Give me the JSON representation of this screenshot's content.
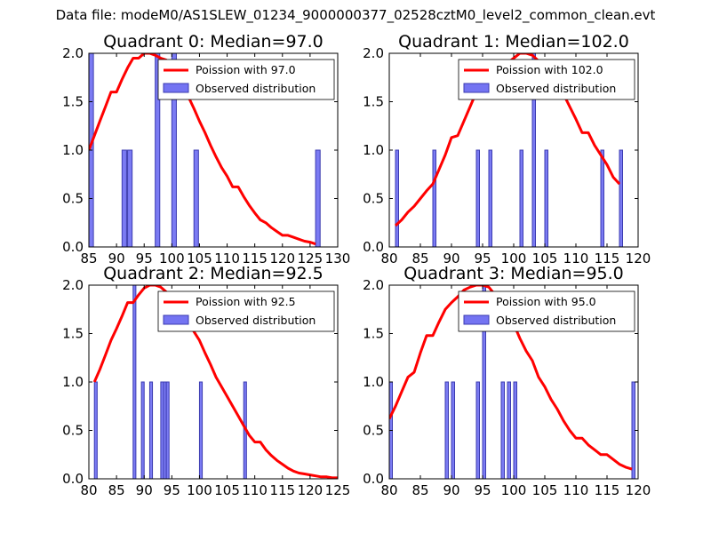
{
  "figure": {
    "suptitle": "Data file: modeM0/AS1SLEW_01234_9000000377_02528cztM0_level2_common_clean.evt",
    "colors": {
      "bar": "#7474f2",
      "bar_edge": "#3b3bb0",
      "curve": "#ff0000",
      "axis": "#000000"
    }
  },
  "chart_data": [
    {
      "type": "bar",
      "title": "Quadrant 0: Median=97.0",
      "xlim": [
        85,
        130
      ],
      "ylim": [
        0,
        2.0
      ],
      "xticks": [
        85,
        90,
        95,
        100,
        105,
        110,
        115,
        120,
        125,
        130
      ],
      "xtick_labels": [
        "85",
        "90",
        "95",
        "100",
        "105",
        "110",
        "115",
        "120",
        "125",
        "130"
      ],
      "yticks": [
        0,
        0.5,
        1.0,
        1.5,
        2.0
      ],
      "ytick_labels": [
        "0.0",
        "0.5",
        "1.0",
        "1.5",
        "2.0"
      ],
      "legend": {
        "position": "top-right",
        "line_label": "Poission with 97.0",
        "bar_label": "Observed distribution"
      },
      "series": [
        {
          "name": "Observed distribution",
          "kind": "bar",
          "bin_width": 0.82,
          "x": [
            85,
            91,
            92,
            97,
            100,
            104,
            126
          ],
          "values": [
            2,
            1,
            1,
            2,
            2,
            1,
            1
          ]
        },
        {
          "name": "Poission with 97.0",
          "kind": "line",
          "x": [
            85,
            86,
            87,
            88,
            89,
            90,
            91,
            92,
            93,
            94,
            95,
            96,
            97,
            98,
            99,
            100,
            101,
            102,
            103,
            104,
            105,
            106,
            107,
            108,
            109,
            110,
            111,
            112,
            113,
            114,
            115,
            116,
            117,
            118,
            119,
            120,
            121,
            122,
            123,
            124,
            125,
            126
          ],
          "values": [
            1.0,
            1.15,
            1.3,
            1.45,
            1.6,
            1.6,
            1.73,
            1.85,
            1.95,
            1.95,
            2.0,
            2.0,
            1.98,
            1.95,
            1.93,
            1.88,
            1.78,
            1.68,
            1.55,
            1.43,
            1.3,
            1.18,
            1.05,
            0.93,
            0.82,
            0.73,
            0.62,
            0.62,
            0.52,
            0.43,
            0.35,
            0.28,
            0.25,
            0.2,
            0.16,
            0.12,
            0.12,
            0.1,
            0.08,
            0.06,
            0.05,
            0.03
          ]
        }
      ]
    },
    {
      "type": "bar",
      "title": "Quadrant 1: Median=102.0",
      "xlim": [
        80,
        120
      ],
      "ylim": [
        0,
        2.0
      ],
      "xticks": [
        80,
        85,
        90,
        95,
        100,
        105,
        110,
        115,
        120
      ],
      "xtick_labels": [
        "80",
        "85",
        "90",
        "95",
        "100",
        "105",
        "110",
        "115",
        "120"
      ],
      "yticks": [
        0,
        0.5,
        1.0,
        1.5,
        2.0
      ],
      "ytick_labels": [
        "0.0",
        "0.5",
        "1.0",
        "1.5",
        "2.0"
      ],
      "legend": {
        "position": "top-right",
        "line_label": "Poission with 102.0",
        "bar_label": "Observed distribution"
      },
      "series": [
        {
          "name": "Observed distribution",
          "kind": "bar",
          "bin_width": 0.5,
          "x": [
            81,
            87,
            94,
            96,
            101,
            103,
            105,
            114,
            117
          ],
          "values": [
            1,
            1,
            1,
            1,
            1,
            2,
            1,
            1,
            1
          ]
        },
        {
          "name": "Poission with 102.0",
          "kind": "line",
          "x": [
            81,
            82,
            83,
            84,
            85,
            86,
            87,
            88,
            89,
            90,
            91,
            92,
            93,
            94,
            95,
            96,
            97,
            98,
            99,
            100,
            101,
            102,
            103,
            104,
            105,
            106,
            107,
            108,
            109,
            110,
            111,
            112,
            113,
            114,
            115,
            116,
            117
          ],
          "values": [
            0.22,
            0.28,
            0.36,
            0.42,
            0.5,
            0.58,
            0.65,
            0.8,
            0.95,
            1.13,
            1.15,
            1.3,
            1.45,
            1.6,
            1.65,
            1.75,
            1.8,
            1.85,
            1.9,
            1.95,
            2.0,
            2.0,
            1.98,
            1.92,
            1.85,
            1.8,
            1.7,
            1.58,
            1.45,
            1.32,
            1.18,
            1.18,
            1.05,
            0.95,
            0.85,
            0.72,
            0.65
          ]
        }
      ]
    },
    {
      "type": "bar",
      "title": "Quadrant 2: Median=92.5",
      "xlim": [
        80,
        125
      ],
      "ylim": [
        0,
        2.0
      ],
      "xticks": [
        80,
        85,
        90,
        95,
        100,
        105,
        110,
        115,
        120,
        125
      ],
      "xtick_labels": [
        "80",
        "85",
        "90",
        "95",
        "100",
        "105",
        "110",
        "115",
        "120",
        "125"
      ],
      "yticks": [
        0,
        0.5,
        1.0,
        1.5,
        2.0
      ],
      "ytick_labels": [
        "0.0",
        "0.5",
        "1.0",
        "1.5",
        "2.0"
      ],
      "legend": {
        "position": "top-right",
        "line_label": "Poission with 92.5",
        "bar_label": "Observed distribution"
      },
      "series": [
        {
          "name": "Observed distribution",
          "kind": "bar",
          "bin_width": 0.5,
          "x": [
            81,
            88,
            89.5,
            91,
            93,
            93.5,
            94,
            100,
            108,
            125
          ],
          "values": [
            1,
            2,
            1,
            1,
            1,
            1,
            1,
            1,
            1,
            1
          ]
        },
        {
          "name": "Poission with 92.5",
          "kind": "line",
          "x": [
            81,
            82,
            83,
            84,
            85,
            86,
            87,
            88,
            89,
            90,
            91,
            92,
            93,
            94,
            95,
            96,
            97,
            98,
            99,
            100,
            101,
            102,
            103,
            104,
            105,
            106,
            107,
            108,
            109,
            110,
            111,
            112,
            113,
            114,
            115,
            116,
            117,
            118,
            119,
            120,
            121,
            122,
            123,
            124,
            125
          ],
          "values": [
            1.0,
            1.13,
            1.28,
            1.43,
            1.55,
            1.68,
            1.82,
            1.82,
            1.9,
            1.97,
            2.0,
            2.0,
            1.98,
            1.93,
            1.88,
            1.8,
            1.72,
            1.62,
            1.52,
            1.43,
            1.3,
            1.18,
            1.05,
            0.95,
            0.85,
            0.75,
            0.65,
            0.55,
            0.45,
            0.38,
            0.38,
            0.3,
            0.24,
            0.19,
            0.15,
            0.11,
            0.08,
            0.06,
            0.05,
            0.04,
            0.03,
            0.02,
            0.02,
            0.01,
            0.01
          ]
        }
      ]
    },
    {
      "type": "bar",
      "title": "Quadrant 3: Median=95.0",
      "xlim": [
        80,
        120
      ],
      "ylim": [
        0,
        2.0
      ],
      "xticks": [
        80,
        85,
        90,
        95,
        100,
        105,
        110,
        115,
        120
      ],
      "xtick_labels": [
        "80",
        "85",
        "90",
        "95",
        "100",
        "105",
        "110",
        "115",
        "120"
      ],
      "yticks": [
        0,
        0.5,
        1.0,
        1.5,
        2.0
      ],
      "ytick_labels": [
        "0.0",
        "0.5",
        "1.0",
        "1.5",
        "2.0"
      ],
      "legend": {
        "position": "top-right",
        "line_label": "Poission with 95.0",
        "bar_label": "Observed distribution"
      },
      "series": [
        {
          "name": "Observed distribution",
          "kind": "bar",
          "bin_width": 0.5,
          "x": [
            80,
            89,
            90,
            94,
            95,
            98,
            99,
            100,
            119
          ],
          "values": [
            1,
            1,
            1,
            1,
            2,
            1,
            1,
            1,
            1
          ]
        },
        {
          "name": "Poission with 95.0",
          "kind": "line",
          "x": [
            80,
            81,
            82,
            83,
            84,
            85,
            86,
            87,
            88,
            89,
            90,
            91,
            92,
            93,
            94,
            95,
            96,
            97,
            98,
            99,
            100,
            101,
            102,
            103,
            104,
            105,
            106,
            107,
            108,
            109,
            110,
            111,
            112,
            113,
            114,
            115,
            116,
            117,
            118,
            119
          ],
          "values": [
            0.62,
            0.75,
            0.9,
            1.05,
            1.1,
            1.3,
            1.48,
            1.48,
            1.62,
            1.75,
            1.82,
            1.88,
            1.95,
            1.98,
            2.0,
            2.0,
            1.98,
            1.9,
            1.8,
            1.72,
            1.6,
            1.45,
            1.32,
            1.22,
            1.05,
            0.95,
            0.82,
            0.72,
            0.6,
            0.5,
            0.42,
            0.42,
            0.35,
            0.3,
            0.25,
            0.25,
            0.2,
            0.15,
            0.12,
            0.1
          ]
        }
      ]
    }
  ]
}
